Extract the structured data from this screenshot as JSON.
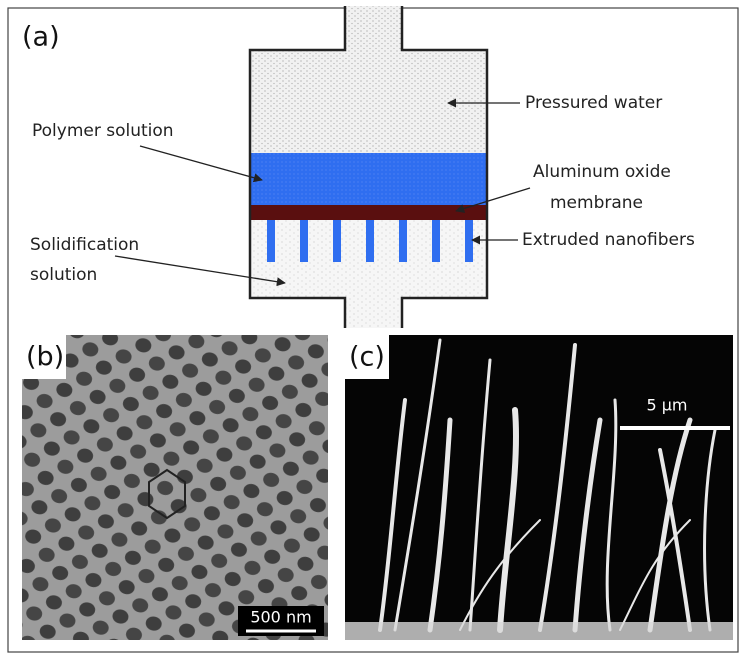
{
  "panel_a": {
    "label": "(a)",
    "pressured_water": "Pressured water",
    "polymer_solution": "Polymer solution",
    "membrane": [
      "Aluminum oxide",
      "membrane"
    ],
    "nanofibers": "Extruded nanofibers",
    "solidification": [
      "Solidification",
      "solution"
    ]
  },
  "panel_b": {
    "label": "(b)",
    "scale_bar": "500 nm"
  },
  "panel_c": {
    "label": "(c)",
    "scale_bar": "5 µm"
  }
}
